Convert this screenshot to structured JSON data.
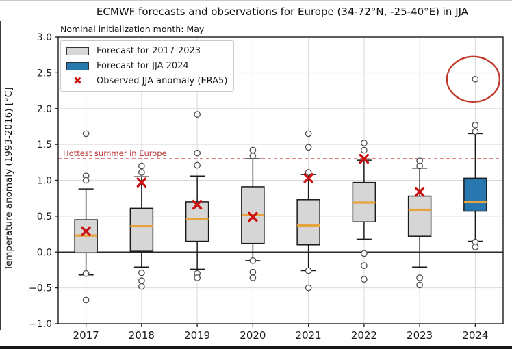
{
  "header": {
    "title": "ECMWF forecasts and observations for Europe (34-72°N, -25-40°E) in JJA",
    "subtitle": "Nominal initialization month: May"
  },
  "legend": {
    "items": [
      {
        "swatch": "gray-box-swatch",
        "label": "Forecast for 2017-2023"
      },
      {
        "swatch": "blue-box-swatch",
        "label": "Forecast for JJA 2024"
      },
      {
        "swatch": "red-x-marker",
        "label": "Observed JJA anomaly (ERA5)"
      }
    ]
  },
  "chart_data": {
    "type": "boxplot",
    "title": "ECMWF forecasts and observations for Europe (34-72°N, -25-40°E) in JJA",
    "subtitle": "Nominal initialization month: May",
    "xlabel": "",
    "ylabel": "Temperature anomaly (1993-2016) [°C]",
    "ylim": [
      -1.0,
      3.0
    ],
    "ytick_step": 0.5,
    "grid": true,
    "legend_position": "upper-left",
    "categories": [
      "2017",
      "2018",
      "2019",
      "2020",
      "2021",
      "2022",
      "2023",
      "2024"
    ],
    "series": [
      {
        "year": "2017",
        "whisker_low": -0.32,
        "q1": -0.01,
        "median": 0.23,
        "q3": 0.45,
        "whisker_high": 0.88,
        "outliers": [
          1.65,
          1.06,
          1.0,
          -0.3,
          -0.67
        ],
        "observed": 0.29,
        "fill": "gray"
      },
      {
        "year": "2018",
        "whisker_low": -0.21,
        "q1": 0.01,
        "median": 0.36,
        "q3": 0.61,
        "whisker_high": 1.05,
        "outliers": [
          1.2,
          1.11,
          -0.29,
          -0.4,
          -0.48
        ],
        "observed": 0.97,
        "fill": "gray"
      },
      {
        "year": "2019",
        "whisker_low": -0.24,
        "q1": 0.15,
        "median": 0.46,
        "q3": 0.7,
        "whisker_high": 1.06,
        "outliers": [
          1.92,
          1.38,
          1.21,
          -0.3,
          -0.36
        ],
        "observed": 0.66,
        "fill": "gray"
      },
      {
        "year": "2020",
        "whisker_low": -0.12,
        "q1": 0.12,
        "median": 0.52,
        "q3": 0.91,
        "whisker_high": 1.3,
        "outliers": [
          1.42,
          1.34,
          -0.12,
          -0.28,
          -0.36
        ],
        "observed": 0.49,
        "fill": "gray"
      },
      {
        "year": "2021",
        "whisker_low": -0.26,
        "q1": 0.1,
        "median": 0.37,
        "q3": 0.73,
        "whisker_high": 1.08,
        "outliers": [
          1.65,
          1.46,
          1.11,
          -0.26,
          -0.5
        ],
        "observed": 1.03,
        "fill": "gray"
      },
      {
        "year": "2022",
        "whisker_low": 0.18,
        "q1": 0.42,
        "median": 0.69,
        "q3": 0.97,
        "whisker_high": 1.28,
        "outliers": [
          1.52,
          1.42,
          -0.02,
          -0.19,
          -0.38
        ],
        "observed": 1.3,
        "fill": "gray"
      },
      {
        "year": "2023",
        "whisker_low": -0.21,
        "q1": 0.22,
        "median": 0.59,
        "q3": 0.78,
        "whisker_high": 1.17,
        "outliers": [
          1.27,
          1.2,
          -0.36,
          -0.46
        ],
        "observed": 0.84,
        "fill": "gray"
      },
      {
        "year": "2024",
        "whisker_low": 0.15,
        "q1": 0.57,
        "median": 0.7,
        "q3": 1.03,
        "whisker_high": 1.65,
        "outliers": [
          2.41,
          1.77,
          1.68,
          0.14,
          0.07
        ],
        "observed": null,
        "fill": "blue"
      }
    ],
    "annotations": {
      "hottest_line": {
        "y": 1.3,
        "label": "Hottest summer in Europe"
      },
      "circled_outlier": {
        "category": "2024",
        "value": 2.41
      }
    },
    "colors": {
      "box_fill_gray": "#d6d6d6",
      "box_fill_blue": "#2878af",
      "box_edge": "#1a1a1a",
      "median": "#e7a33c",
      "whisker": "#1a1a1a",
      "outlier_fill": "#fdfdfd",
      "outlier_stroke": "#4d4d4d",
      "observed_x": "#cc1111",
      "hottest_line": "#cc3a3a",
      "hottest_label": "#b93535",
      "ellipse": "#c0392b",
      "grid": "#d9d9d9",
      "zero_line": "#2a2a2a",
      "text": "#1a1a1a"
    }
  }
}
